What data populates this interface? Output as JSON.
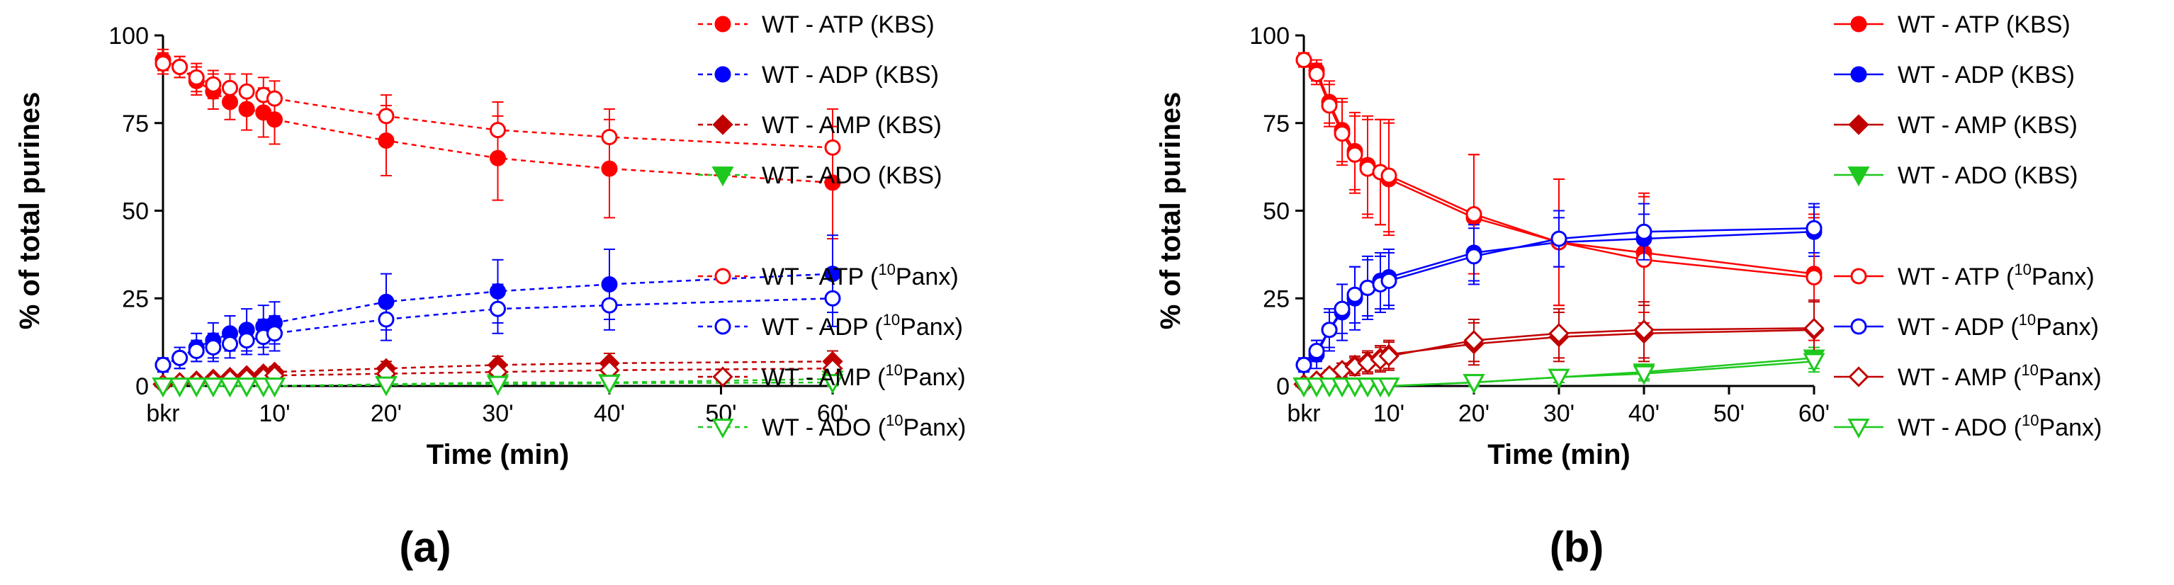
{
  "chart_data": [
    {
      "type": "line",
      "panel_label": "(a)",
      "xlabel": "Time (min)",
      "ylabel": "% of total purines",
      "xlim": [
        0,
        60
      ],
      "ylim": [
        0,
        100
      ],
      "x_ticks": [
        "bkr",
        "10'",
        "20'",
        "30'",
        "40'",
        "50'",
        "60'"
      ],
      "y_ticks": [
        "0",
        "25",
        "50",
        "75",
        "100"
      ],
      "line_style": "dashed",
      "grid": false,
      "legend_position": "right",
      "x": [
        0,
        1.5,
        3,
        4.5,
        6,
        7.5,
        9,
        10,
        20,
        30,
        40,
        60
      ],
      "series": [
        {
          "name": "WT - ATP (KBS)",
          "color": "#ff0000",
          "marker": "circle-filled",
          "values": [
            93,
            91,
            87,
            84,
            81,
            79,
            78,
            76,
            70,
            65,
            62,
            58
          ],
          "errors": [
            3,
            3,
            4,
            5,
            5,
            6,
            7,
            7,
            10,
            12,
            14,
            16
          ]
        },
        {
          "name": "WT - ADP (KBS)",
          "color": "#0000ff",
          "marker": "circle-filled",
          "values": [
            6,
            8,
            11,
            13,
            15,
            16,
            17,
            18,
            24,
            27,
            29,
            32
          ],
          "errors": [
            2,
            3,
            4,
            5,
            5,
            6,
            6,
            6,
            8,
            9,
            10,
            11
          ]
        },
        {
          "name": "WT - AMP (KBS)",
          "color": "#c00000",
          "marker": "diamond-filled",
          "values": [
            0.5,
            1,
            1.5,
            2,
            2.5,
            3,
            3.5,
            4,
            5,
            6,
            6.5,
            7
          ],
          "errors": [
            0.5,
            0.5,
            0.8,
            1,
            1,
            1.2,
            1.4,
            1.5,
            2,
            2.5,
            2.8,
            3
          ]
        },
        {
          "name": "WT - ADO (KBS)",
          "color": "#1ec81e",
          "marker": "triangle-down-filled",
          "values": [
            0,
            0,
            0,
            0,
            0,
            0,
            0,
            0,
            0.5,
            1,
            1,
            2
          ],
          "errors": [
            0.2,
            0.2,
            0.2,
            0.3,
            0.3,
            0.3,
            0.3,
            0.4,
            0.6,
            0.8,
            1,
            1.5
          ]
        },
        {
          "name_prefix": "WT - ATP (",
          "name_sup": "10",
          "name_suffix": "Panx)",
          "color": "#ff0000",
          "marker": "circle-open",
          "values": [
            92,
            91,
            88,
            86,
            85,
            84,
            83,
            82,
            77,
            73,
            71,
            68
          ],
          "errors": [
            3,
            3,
            4,
            4,
            4,
            5,
            5,
            5,
            6,
            8,
            8,
            11
          ]
        },
        {
          "name_prefix": "WT - ADP (",
          "name_sup": "10",
          "name_suffix": "Panx)",
          "color": "#0000ff",
          "marker": "circle-open",
          "values": [
            6,
            8,
            10,
            11,
            12,
            13,
            14,
            15,
            19,
            22,
            23,
            25
          ],
          "errors": [
            2,
            3,
            3,
            4,
            4,
            4,
            5,
            5,
            6,
            7,
            7,
            8
          ]
        },
        {
          "name_prefix": "WT - AMP (",
          "name_sup": "10",
          "name_suffix": "Panx)",
          "color": "#c00000",
          "marker": "diamond-open",
          "values": [
            0.5,
            1,
            1.2,
            1.5,
            2,
            2.2,
            2.5,
            3,
            3.5,
            4,
            4.5,
            5
          ],
          "errors": [
            0.4,
            0.5,
            0.6,
            0.7,
            0.8,
            0.9,
            1,
            1,
            1.5,
            1.8,
            2,
            2.4
          ]
        },
        {
          "name_prefix": "WT - ADO (",
          "name_sup": "10",
          "name_suffix": "Panx)",
          "color": "#1ec81e",
          "marker": "triangle-down-open",
          "values": [
            0,
            0,
            0,
            0,
            0,
            0,
            0,
            0,
            0.3,
            0.5,
            0.8,
            1
          ],
          "errors": [
            0.2,
            0.2,
            0.2,
            0.2,
            0.3,
            0.3,
            0.3,
            0.3,
            0.5,
            0.6,
            0.8,
            1
          ]
        }
      ]
    },
    {
      "type": "line",
      "panel_label": "(b)",
      "xlabel": "Time (min)",
      "ylabel": "% of total purines",
      "xlim": [
        0,
        60
      ],
      "ylim": [
        0,
        100
      ],
      "x_ticks": [
        "bkr",
        "10'",
        "20'",
        "30'",
        "40'",
        "50'",
        "60'"
      ],
      "y_ticks": [
        "0",
        "25",
        "50",
        "75",
        "100"
      ],
      "line_style": "solid",
      "grid": false,
      "legend_position": "right",
      "x": [
        0,
        1.5,
        3,
        4.5,
        6,
        7.5,
        9,
        10,
        20,
        30,
        40,
        60
      ],
      "series": [
        {
          "name": "WT - ATP (KBS)",
          "color": "#ff0000",
          "marker": "circle-filled",
          "values": [
            93,
            90,
            81,
            73,
            67,
            63,
            61,
            59,
            48,
            41,
            38,
            32
          ],
          "errors": [
            2,
            3,
            6,
            9,
            11,
            14,
            15,
            16,
            18,
            18,
            17,
            16
          ]
        },
        {
          "name": "WT - ADP (KBS)",
          "color": "#0000ff",
          "marker": "circle-filled",
          "values": [
            6,
            9,
            16,
            21,
            25,
            28,
            30,
            31,
            38,
            41,
            42,
            44
          ],
          "errors": [
            2,
            4,
            6,
            8,
            9,
            9,
            8,
            8,
            8,
            7,
            7,
            7
          ]
        },
        {
          "name": "WT - AMP (KBS)",
          "color": "#c00000",
          "marker": "diamond-filled",
          "values": [
            0.5,
            1.5,
            3,
            4.5,
            6,
            7,
            8,
            9,
            12,
            14,
            15,
            16
          ],
          "errors": [
            0.5,
            1,
            1.5,
            2,
            2.5,
            3,
            3.5,
            4,
            6,
            7,
            8,
            8
          ]
        },
        {
          "name": "WT - ADO (KBS)",
          "color": "#1ec81e",
          "marker": "triangle-down-filled",
          "values": [
            0,
            0,
            0,
            0,
            0,
            0,
            0,
            0,
            1,
            2.5,
            4,
            8
          ],
          "errors": [
            0.2,
            0.2,
            0.2,
            0.3,
            0.3,
            0.3,
            0.4,
            0.4,
            1,
            1.5,
            2,
            3
          ]
        },
        {
          "name_prefix": "WT - ATP (",
          "name_sup": "10",
          "name_suffix": "Panx)",
          "color": "#ff0000",
          "marker": "circle-open",
          "values": [
            93,
            89,
            80,
            72,
            66,
            62,
            61,
            60,
            49,
            41,
            36,
            31
          ],
          "errors": [
            2,
            3,
            6,
            9,
            11,
            14,
            15,
            16,
            17,
            18,
            18,
            18
          ]
        },
        {
          "name_prefix": "WT - ADP (",
          "name_sup": "10",
          "name_suffix": "Panx)",
          "color": "#0000ff",
          "marker": "circle-open",
          "values": [
            6,
            10,
            16,
            22,
            26,
            28,
            29,
            30,
            37,
            42,
            44,
            45
          ],
          "errors": [
            2,
            3,
            5,
            7,
            8,
            8,
            8,
            8,
            8,
            8,
            8,
            7
          ]
        },
        {
          "name_prefix": "WT - AMP (",
          "name_sup": "10",
          "name_suffix": "Panx)",
          "color": "#c00000",
          "marker": "diamond-open",
          "values": [
            0.5,
            1.5,
            3,
            4.5,
            5.5,
            6.5,
            7.5,
            8.5,
            13,
            15,
            16,
            16.5
          ],
          "errors": [
            0.5,
            1,
            1.5,
            2,
            2.5,
            3,
            3.5,
            4,
            6,
            7,
            8,
            8
          ]
        },
        {
          "name_prefix": "WT - ADO (",
          "name_sup": "10",
          "name_suffix": "Panx)",
          "color": "#1ec81e",
          "marker": "triangle-down-open",
          "values": [
            0,
            0,
            0,
            0,
            0,
            0,
            0,
            0,
            1,
            2.5,
            3.5,
            7
          ],
          "errors": [
            0.2,
            0.2,
            0.2,
            0.2,
            0.3,
            0.3,
            0.3,
            0.4,
            1,
            1.5,
            2,
            3
          ]
        }
      ]
    }
  ]
}
